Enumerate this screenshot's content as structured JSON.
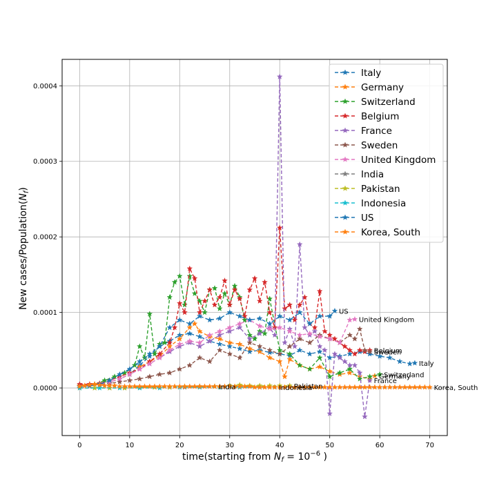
{
  "chart_data": {
    "type": "line",
    "xlabel_prefix": "time(starting from ",
    "xlabel_sym": "N",
    "xlabel_sub": "f",
    "xlabel_eq": " = 10",
    "xlabel_exp": "−6",
    "xlabel_suffix": " )",
    "ylabel_prefix": "New cases/Population(",
    "ylabel_sym": "N",
    "ylabel_sub": "f",
    "ylabel_suffix": ")",
    "xlim": [
      -3.5,
      73.5
    ],
    "ylim": [
      -6.3e-05,
      0.000435
    ],
    "xticks": [
      0,
      10,
      20,
      30,
      40,
      50,
      60,
      70
    ],
    "xtick_labels": [
      "0",
      "10",
      "20",
      "30",
      "40",
      "50",
      "60",
      "70"
    ],
    "yticks": [
      0,
      0.0001,
      0.0002,
      0.0003,
      0.0004
    ],
    "ytick_labels": [
      "0.0000",
      "0.0001",
      "0.0002",
      "0.0003",
      "0.0004"
    ],
    "grid": true,
    "legend_position": "top-right",
    "line_style": "dashed",
    "marker": "star",
    "series": [
      {
        "name": "Italy",
        "color": "#1f77b4",
        "end_label": "Italy",
        "x": [
          0,
          2,
          4,
          6,
          8,
          10,
          12,
          14,
          16,
          18,
          20,
          22,
          24,
          26,
          28,
          30,
          32,
          34,
          36,
          38,
          40,
          42,
          44,
          46,
          48,
          50,
          52,
          54,
          56,
          58,
          60,
          62,
          64,
          66,
          67
        ],
        "y": [
          3e-06,
          3e-06,
          5e-06,
          8e-06,
          1.2e-05,
          1.8e-05,
          3e-05,
          4.2e-05,
          5.5e-05,
          6.2e-05,
          7e-05,
          7.2e-05,
          6.8e-05,
          6.2e-05,
          5.8e-05,
          5.5e-05,
          5.2e-05,
          4.8e-05,
          5e-05,
          4.7e-05,
          4.5e-05,
          4.3e-05,
          5e-05,
          4.5e-05,
          4.8e-05,
          4e-05,
          4.2e-05,
          4.5e-05,
          4.8e-05,
          4.5e-05,
          4.2e-05,
          4e-05,
          3.5e-05,
          3.2e-05,
          3.3e-05
        ]
      },
      {
        "name": "Germany",
        "color": "#ff7f0e",
        "end_label": "Germany",
        "x": [
          0,
          2,
          4,
          6,
          8,
          10,
          12,
          14,
          16,
          18,
          20,
          22,
          23,
          24,
          26,
          28,
          30,
          32,
          34,
          36,
          38,
          40,
          41,
          42,
          44,
          46,
          48,
          50,
          52,
          54,
          56,
          58,
          59
        ],
        "y": [
          3e-06,
          4e-06,
          6e-06,
          8e-06,
          1.2e-05,
          1.8e-05,
          2.8e-05,
          3.5e-05,
          4.2e-05,
          5.5e-05,
          6.5e-05,
          8e-05,
          8.5e-05,
          7.5e-05,
          6.8e-05,
          6.5e-05,
          6e-05,
          5.8e-05,
          5.2e-05,
          4.8e-05,
          4e-05,
          3.5e-05,
          1.5e-05,
          3.8e-05,
          3e-05,
          2.5e-05,
          2.8e-05,
          2.2e-05,
          1.8e-05,
          2e-05,
          1.5e-05,
          1.2e-05,
          1.6e-05
        ]
      },
      {
        "name": "Switzerland",
        "color": "#2ca02c",
        "end_label": "Switzerland",
        "x": [
          0,
          3,
          5,
          7,
          9,
          11,
          12,
          13,
          14,
          15,
          16,
          17,
          18,
          19,
          20,
          21,
          22,
          23,
          24,
          25,
          26,
          27,
          28,
          29,
          30,
          31,
          32,
          33,
          34,
          35,
          36,
          37,
          38,
          40,
          42,
          44,
          46,
          48,
          50,
          52,
          54,
          56,
          58,
          60
        ],
        "y": [
          2e-06,
          5e-06,
          1e-05,
          1.5e-05,
          2e-05,
          3e-05,
          5.5e-05,
          4e-05,
          9.8e-05,
          4.5e-05,
          5.8e-05,
          6e-05,
          0.00012,
          0.00014,
          0.000148,
          0.00011,
          0.000148,
          0.000125,
          0.000115,
          0.0001,
          0.00013,
          0.000132,
          0.000105,
          0.000125,
          0.00011,
          0.000135,
          0.00012,
          9e-05,
          7e-05,
          6.5e-05,
          7.5e-05,
          7.2e-05,
          0.000118,
          5e-05,
          4.5e-05,
          3e-05,
          2.5e-05,
          4e-05,
          1.5e-05,
          2e-05,
          2.5e-05,
          1.2e-05,
          1.5e-05,
          1.8e-05
        ]
      },
      {
        "name": "Belgium",
        "color": "#d62728",
        "end_label": "Belgium",
        "x": [
          0,
          2,
          4,
          6,
          8,
          10,
          12,
          14,
          16,
          18,
          19,
          20,
          21,
          22,
          23,
          24,
          25,
          26,
          27,
          28,
          29,
          30,
          31,
          32,
          33,
          34,
          35,
          36,
          37,
          38,
          39,
          40,
          41,
          42,
          43,
          44,
          45,
          46,
          47,
          48,
          49,
          50,
          51,
          52,
          53,
          54,
          55,
          56,
          57,
          58
        ],
        "y": [
          5e-06,
          5e-06,
          6e-06,
          1e-05,
          1.5e-05,
          2e-05,
          2.5e-05,
          3.5e-05,
          4.5e-05,
          6e-05,
          8e-05,
          0.000112,
          0.0001,
          0.000158,
          0.000145,
          0.0001,
          0.000115,
          0.00013,
          0.00011,
          0.00012,
          0.000142,
          0.00011,
          0.00013,
          0.000118,
          9.5e-05,
          0.00013,
          0.000145,
          0.000115,
          0.00014,
          0.0001,
          8e-05,
          0.000212,
          0.000105,
          0.00011,
          9e-05,
          0.00011,
          0.00012,
          8.5e-05,
          8e-05,
          0.000128,
          7.5e-05,
          7e-05,
          6.5e-05,
          6e-05,
          5.5e-05,
          5e-05,
          4.5e-05,
          5e-05,
          4.8e-05,
          5e-05
        ]
      },
      {
        "name": "France",
        "color": "#9467bd",
        "end_label": "France",
        "x": [
          0,
          2,
          4,
          6,
          8,
          10,
          12,
          14,
          16,
          18,
          20,
          22,
          24,
          26,
          28,
          30,
          32,
          34,
          36,
          38,
          39,
          40,
          41,
          42,
          43,
          44,
          45,
          46,
          47,
          48,
          49,
          50,
          51,
          52,
          53,
          54,
          55,
          56,
          57,
          58
        ],
        "y": [
          2e-06,
          3e-06,
          5e-06,
          8e-06,
          1.2e-05,
          1.8e-05,
          2.5e-05,
          3.2e-05,
          4e-05,
          4.8e-05,
          5.5e-05,
          6e-05,
          5.5e-05,
          6.2e-05,
          7e-05,
          7.5e-05,
          8e-05,
          6.5e-05,
          7.2e-05,
          8e-05,
          7e-05,
          0.000412,
          6e-05,
          7.8e-05,
          5.5e-05,
          0.00019,
          8e-05,
          7e-05,
          7.5e-05,
          5.5e-05,
          5e-05,
          -3.4e-05,
          4.5e-05,
          4e-05,
          3.5e-05,
          3e-05,
          3e-05,
          2e-05,
          -3.8e-05,
          1e-05
        ]
      },
      {
        "name": "Sweden",
        "color": "#8c564b",
        "end_label": "Sweden",
        "x": [
          0,
          2,
          4,
          6,
          8,
          10,
          12,
          14,
          16,
          18,
          20,
          22,
          24,
          26,
          28,
          30,
          32,
          34,
          36,
          38,
          40,
          42,
          44,
          46,
          48,
          50,
          52,
          54,
          55,
          56,
          57,
          58
        ],
        "y": [
          2e-06,
          3e-06,
          5e-06,
          6e-06,
          8e-06,
          1e-05,
          1.2e-05,
          1.5e-05,
          1.8e-05,
          2e-05,
          2.5e-05,
          3e-05,
          4e-05,
          3.5e-05,
          5e-05,
          4.5e-05,
          4e-05,
          6e-05,
          5.5e-05,
          5e-05,
          4.5e-05,
          5.5e-05,
          6.5e-05,
          6e-05,
          7e-05,
          6.5e-05,
          6e-05,
          7e-05,
          6.5e-05,
          7.8e-05,
          5e-05,
          4.8e-05
        ]
      },
      {
        "name": "United Kingdom",
        "color": "#e377c2",
        "end_label": "United Kingdom",
        "x": [
          0,
          2,
          4,
          6,
          8,
          10,
          12,
          14,
          16,
          18,
          20,
          22,
          24,
          26,
          28,
          30,
          32,
          34,
          36,
          38,
          40,
          42,
          44,
          46,
          48,
          50,
          52,
          54,
          55
        ],
        "y": [
          2e-06,
          3e-06,
          5e-06,
          8e-06,
          1.2e-05,
          1.8e-05,
          2.5e-05,
          3.2e-05,
          4e-05,
          5e-05,
          5.8e-05,
          6.2e-05,
          6e-05,
          7e-05,
          7.5e-05,
          8e-05,
          8.5e-05,
          9e-05,
          8.2e-05,
          7.8e-05,
          8e-05,
          7.5e-05,
          7e-05,
          7.2e-05,
          6.8e-05,
          6.5e-05,
          6e-05,
          9e-05,
          9.1e-05
        ]
      },
      {
        "name": "India",
        "color": "#7f7f7f",
        "end_label": "India",
        "x": [
          0,
          3,
          6,
          9,
          12,
          15,
          18,
          21,
          24,
          27
        ],
        "y": [
          0,
          0,
          0,
          0,
          1e-06,
          1e-06,
          1e-06,
          1e-06,
          2e-06,
          2e-06
        ]
      },
      {
        "name": "Pakistan",
        "color": "#bcbd22",
        "end_label": "Pakistan",
        "x": [
          0,
          3,
          6,
          9,
          12,
          15,
          18,
          21,
          24,
          27,
          30,
          32,
          34,
          36,
          38,
          40,
          42
        ],
        "y": [
          0,
          0,
          0,
          0,
          1e-06,
          1e-06,
          1e-06,
          2e-06,
          2e-06,
          2e-06,
          3e-06,
          4e-06,
          3e-06,
          3e-06,
          3e-06,
          3e-06,
          3e-06
        ]
      },
      {
        "name": "Indonesia",
        "color": "#17becf",
        "end_label": "Indonesia",
        "x": [
          0,
          4,
          8,
          12,
          16,
          20,
          24,
          28,
          32,
          36,
          39
        ],
        "y": [
          0,
          0,
          0,
          0,
          0,
          1e-06,
          1e-06,
          1e-06,
          1e-06,
          1e-06,
          1e-06
        ]
      },
      {
        "name": "US",
        "color": "#1f77b4",
        "end_label": "US",
        "x": [
          0,
          2,
          4,
          6,
          8,
          10,
          12,
          14,
          16,
          18,
          20,
          22,
          24,
          26,
          28,
          30,
          32,
          34,
          36,
          38,
          40,
          42,
          44,
          46,
          48,
          50,
          51
        ],
        "y": [
          2e-06,
          3e-06,
          5e-06,
          1e-05,
          1.8e-05,
          2.5e-05,
          3.5e-05,
          4.5e-05,
          5.5e-05,
          8e-05,
          9e-05,
          8.5e-05,
          9.5e-05,
          9e-05,
          9.2e-05,
          0.0001,
          9.5e-05,
          9e-05,
          9.2e-05,
          8.5e-05,
          9.5e-05,
          9e-05,
          0.0001,
          8.5e-05,
          9.5e-05,
          9.5e-05,
          0.000102
        ]
      },
      {
        "name": "Korea, South",
        "color": "#ff7f0e",
        "end_label": "Korea, South",
        "x": [
          0,
          1,
          2,
          3,
          4,
          5,
          6,
          7,
          8,
          9,
          10,
          11,
          12,
          13,
          14,
          15,
          16,
          17,
          18,
          19,
          20,
          21,
          22,
          23,
          24,
          25,
          26,
          27,
          28,
          29,
          30,
          31,
          32,
          33,
          34,
          35,
          36,
          37,
          38,
          39,
          40,
          41,
          42,
          43,
          44,
          45,
          46,
          47,
          48,
          49,
          50,
          51,
          52,
          53,
          54,
          55,
          56,
          57,
          58,
          59,
          60,
          61,
          62,
          63,
          64,
          65,
          66,
          67,
          68,
          69,
          70
        ],
        "y": [
          2e-06,
          3e-06,
          4e-06,
          5e-06,
          4e-06,
          3e-06,
          3e-06,
          3e-06,
          2e-06,
          2e-06,
          2e-06,
          2e-06,
          2e-06,
          2e-06,
          2e-06,
          2e-06,
          2e-06,
          2e-06,
          2e-06,
          2e-06,
          2e-06,
          2e-06,
          2e-06,
          2e-06,
          2e-06,
          2e-06,
          2e-06,
          2e-06,
          2e-06,
          2e-06,
          2e-06,
          2e-06,
          2e-06,
          2e-06,
          2e-06,
          1e-06,
          1e-06,
          1e-06,
          1e-06,
          1e-06,
          1e-06,
          1e-06,
          1e-06,
          1e-06,
          1e-06,
          1e-06,
          1e-06,
          1e-06,
          1e-06,
          1e-06,
          1e-06,
          1e-06,
          1e-06,
          1e-06,
          1e-06,
          1e-06,
          1e-06,
          1e-06,
          1e-06,
          1e-06,
          1e-06,
          1e-06,
          1e-06,
          1e-06,
          1e-06,
          1e-06,
          1e-06,
          1e-06,
          1e-06,
          1e-06,
          1e-06
        ]
      }
    ]
  }
}
